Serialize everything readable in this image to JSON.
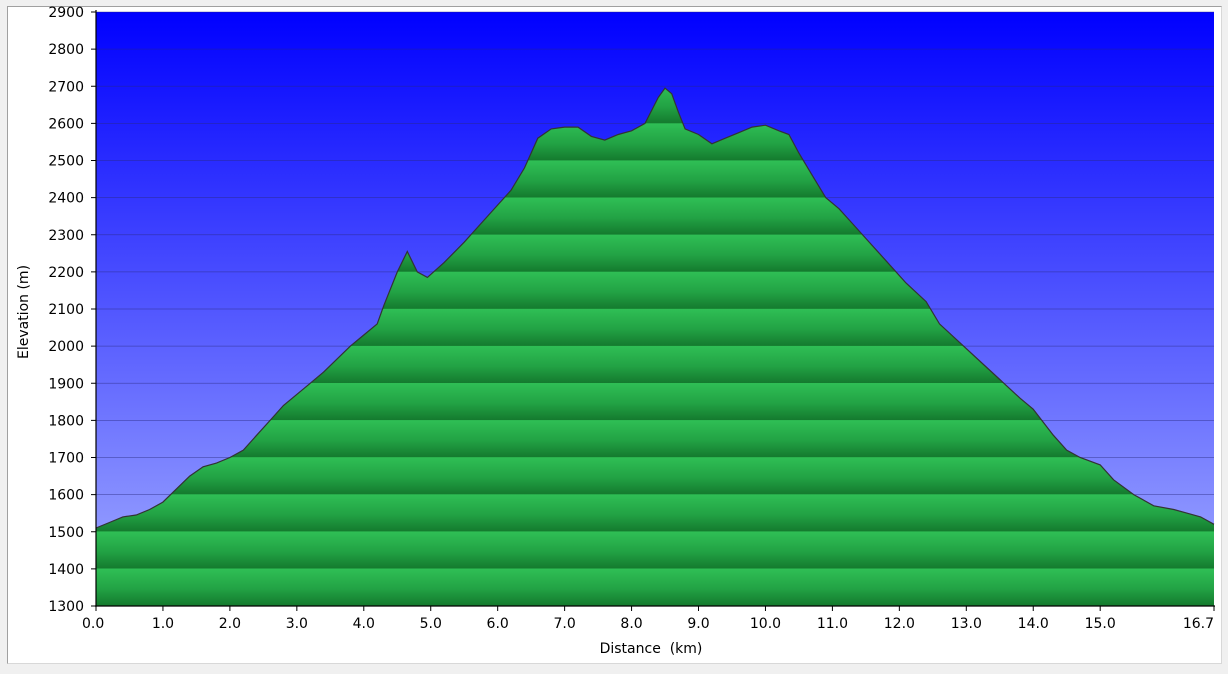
{
  "chart_data": {
    "type": "area",
    "xlabel": "Distance  (km)",
    "ylabel": "Elevation (m)",
    "xlim": [
      0.0,
      16.7
    ],
    "ylim": [
      1300,
      2900
    ],
    "xticks": [
      0.0,
      1.0,
      2.0,
      3.0,
      4.0,
      5.0,
      6.0,
      7.0,
      8.0,
      9.0,
      10.0,
      11.0,
      12.0,
      13.0,
      14.0,
      15.0,
      16.7
    ],
    "xtick_labels": [
      "0.0",
      "1.0",
      "2.0",
      "3.0",
      "4.0",
      "5.0",
      "6.0",
      "7.0",
      "8.0",
      "9.0",
      "10.0",
      "11.0",
      "12.0",
      "13.0",
      "14.0",
      "15.0",
      "16.7"
    ],
    "yticks": [
      1300,
      1400,
      1500,
      1600,
      1700,
      1800,
      1900,
      2000,
      2100,
      2200,
      2300,
      2400,
      2500,
      2600,
      2700,
      2800,
      2900
    ],
    "ytick_labels": [
      "1300",
      "1400",
      "1500",
      "1600",
      "1700",
      "1800",
      "1900",
      "2000",
      "2100",
      "2200",
      "2300",
      "2400",
      "2500",
      "2600",
      "2700",
      "2800",
      "2900"
    ],
    "grid": true,
    "colors": {
      "sky_top": "#0000ff",
      "sky_bottom": "#a3adff",
      "area_light": "#2fbf55",
      "area_dark": "#147a2e",
      "outline": "#333333",
      "grid": "#2a2a80"
    },
    "series": [
      {
        "x": [
          0.0,
          0.2,
          0.4,
          0.6,
          0.8,
          1.0,
          1.2,
          1.4,
          1.6,
          1.8,
          2.0,
          2.2,
          2.4,
          2.6,
          2.8,
          3.0,
          3.2,
          3.4,
          3.6,
          3.8,
          4.0,
          4.2,
          4.3,
          4.5,
          4.65,
          4.8,
          4.95,
          5.2,
          5.5,
          5.8,
          6.0,
          6.2,
          6.4,
          6.6,
          6.8,
          7.0,
          7.2,
          7.4,
          7.6,
          7.8,
          8.0,
          8.2,
          8.4,
          8.5,
          8.6,
          8.7,
          8.8,
          9.0,
          9.2,
          9.4,
          9.6,
          9.8,
          10.0,
          10.2,
          10.35,
          10.5,
          10.7,
          10.9,
          11.1,
          11.3,
          11.5,
          11.7,
          11.9,
          12.1,
          12.4,
          12.6,
          12.9,
          13.2,
          13.5,
          13.8,
          14.0,
          14.3,
          14.5,
          14.7,
          15.0,
          15.2,
          15.5,
          15.8,
          16.1,
          16.3,
          16.5,
          16.7
        ],
        "y": [
          1510,
          1525,
          1540,
          1545,
          1560,
          1580,
          1615,
          1650,
          1675,
          1685,
          1700,
          1720,
          1760,
          1800,
          1840,
          1870,
          1900,
          1930,
          1965,
          2000,
          2030,
          2060,
          2110,
          2200,
          2255,
          2200,
          2185,
          2225,
          2280,
          2340,
          2380,
          2420,
          2480,
          2560,
          2585,
          2590,
          2590,
          2565,
          2555,
          2570,
          2580,
          2600,
          2670,
          2695,
          2680,
          2630,
          2585,
          2570,
          2545,
          2560,
          2575,
          2590,
          2595,
          2580,
          2570,
          2520,
          2460,
          2400,
          2370,
          2330,
          2290,
          2250,
          2210,
          2170,
          2120,
          2060,
          2010,
          1960,
          1910,
          1860,
          1830,
          1760,
          1720,
          1700,
          1680,
          1640,
          1600,
          1570,
          1560,
          1550,
          1540,
          1520
        ]
      }
    ]
  }
}
